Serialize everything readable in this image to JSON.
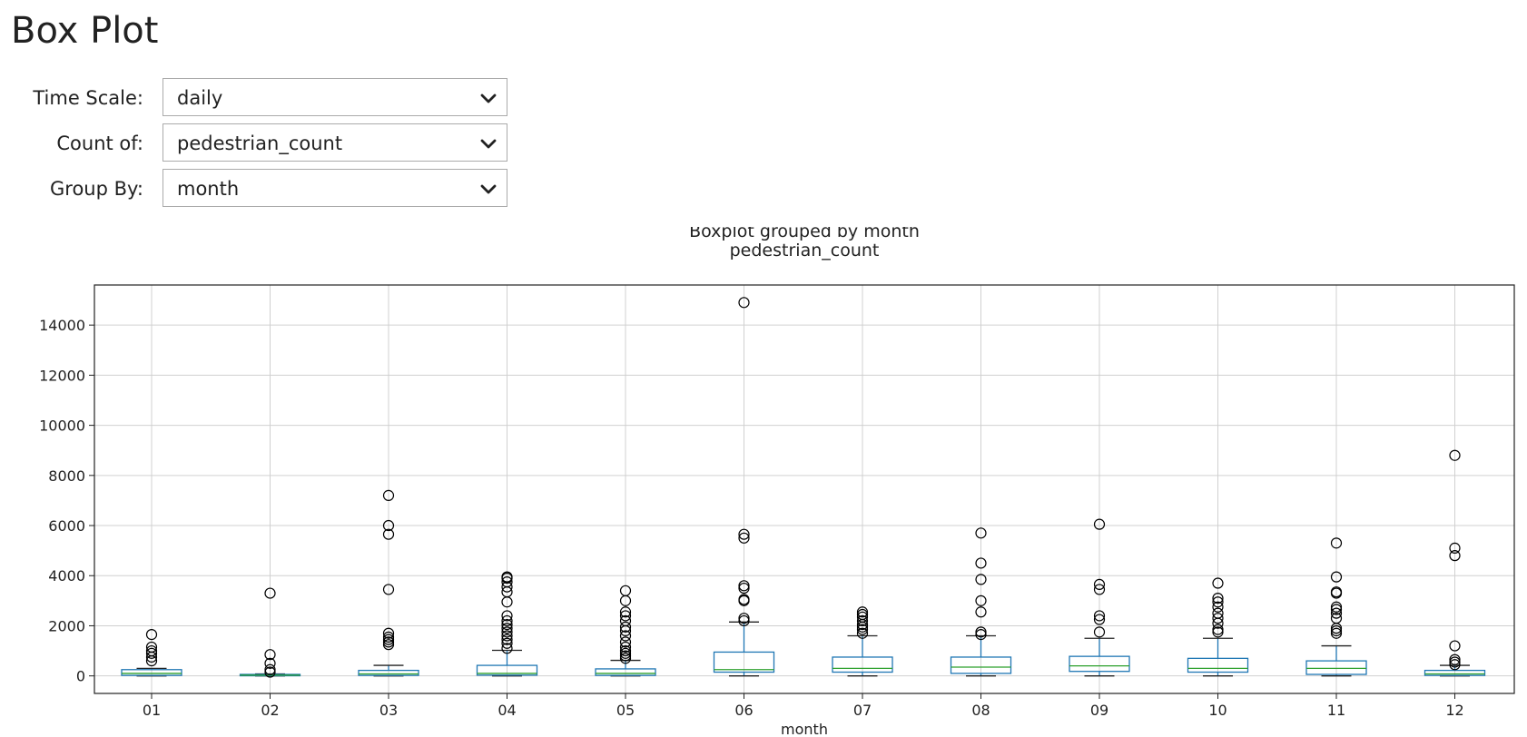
{
  "page": {
    "title": "Box Plot"
  },
  "controls": {
    "time_scale": {
      "label": "Time Scale:",
      "value": "daily"
    },
    "count_of": {
      "label": "Count of:",
      "value": "pedestrian_count"
    },
    "group_by": {
      "label": "Group By:",
      "value": "month"
    }
  },
  "chart_data": {
    "type": "box",
    "title": "Boxplot grouped by month",
    "subtitle": "pedestrian_count",
    "xlabel": "month",
    "ylabel": "",
    "ylim": [
      -700,
      15600
    ],
    "yticks": [
      0,
      2000,
      4000,
      6000,
      8000,
      10000,
      12000,
      14000
    ],
    "grid": true,
    "colors": {
      "box": "#1f77b4",
      "median": "#2ca02c",
      "outlier": "#000000",
      "grid": "#d0d0d0"
    },
    "categories": [
      "01",
      "02",
      "03",
      "04",
      "05",
      "06",
      "07",
      "08",
      "09",
      "10",
      "11",
      "12"
    ],
    "boxes": [
      {
        "category": "01",
        "whisker_low": 0,
        "q1": 20,
        "median": 100,
        "q3": 250,
        "whisker_high": 300,
        "outliers": [
          600,
          750,
          900,
          1000,
          1150,
          1650
        ]
      },
      {
        "category": "02",
        "whisker_low": 0,
        "q1": 10,
        "median": 30,
        "q3": 60,
        "whisker_high": 80,
        "outliers": [
          150,
          250,
          500,
          850,
          3300
        ]
      },
      {
        "category": "03",
        "whisker_low": 0,
        "q1": 20,
        "median": 80,
        "q3": 220,
        "whisker_high": 420,
        "outliers": [
          1250,
          1350,
          1450,
          1550,
          1700,
          3450,
          5650,
          6000,
          7200
        ]
      },
      {
        "category": "04",
        "whisker_low": 0,
        "q1": 30,
        "median": 100,
        "q3": 420,
        "whisker_high": 1020,
        "outliers": [
          1100,
          1300,
          1450,
          1600,
          1750,
          1900,
          2050,
          2200,
          2400,
          2950,
          3350,
          3550,
          3750,
          3900,
          3950
        ]
      },
      {
        "category": "05",
        "whisker_low": 0,
        "q1": 20,
        "median": 100,
        "q3": 280,
        "whisker_high": 620,
        "outliers": [
          700,
          800,
          900,
          1000,
          1150,
          1350,
          1600,
          1800,
          1950,
          2200,
          2400,
          2550,
          3000,
          3400
        ]
      },
      {
        "category": "06",
        "whisker_low": 0,
        "q1": 150,
        "median": 250,
        "q3": 950,
        "whisker_high": 2150,
        "outliers": [
          2200,
          2300,
          3000,
          3050,
          3500,
          3600,
          5500,
          5650,
          14900
        ]
      },
      {
        "category": "07",
        "whisker_low": 0,
        "q1": 150,
        "median": 300,
        "q3": 750,
        "whisker_high": 1600,
        "outliers": [
          1700,
          1850,
          1950,
          2050,
          2200,
          2350,
          2450,
          2550
        ]
      },
      {
        "category": "08",
        "whisker_low": 0,
        "q1": 100,
        "median": 350,
        "q3": 750,
        "whisker_high": 1600,
        "outliers": [
          1650,
          1750,
          2550,
          3000,
          3850,
          4500,
          5700
        ]
      },
      {
        "category": "09",
        "whisker_low": 0,
        "q1": 180,
        "median": 400,
        "q3": 780,
        "whisker_high": 1500,
        "outliers": [
          1750,
          2250,
          2400,
          3450,
          3650,
          6050
        ]
      },
      {
        "category": "10",
        "whisker_low": 0,
        "q1": 150,
        "median": 300,
        "q3": 700,
        "whisker_high": 1500,
        "outliers": [
          1750,
          1850,
          2100,
          2300,
          2500,
          2750,
          2950,
          3100,
          3700
        ]
      },
      {
        "category": "11",
        "whisker_low": 0,
        "q1": 60,
        "median": 300,
        "q3": 600,
        "whisker_high": 1200,
        "outliers": [
          1700,
          1800,
          1900,
          2300,
          2500,
          2650,
          2750,
          3300,
          3350,
          3950,
          5300
        ]
      },
      {
        "category": "12",
        "whisker_low": 0,
        "q1": 20,
        "median": 80,
        "q3": 220,
        "whisker_high": 420,
        "outliers": [
          450,
          550,
          650,
          1200,
          4800,
          5100,
          8800
        ]
      }
    ]
  }
}
